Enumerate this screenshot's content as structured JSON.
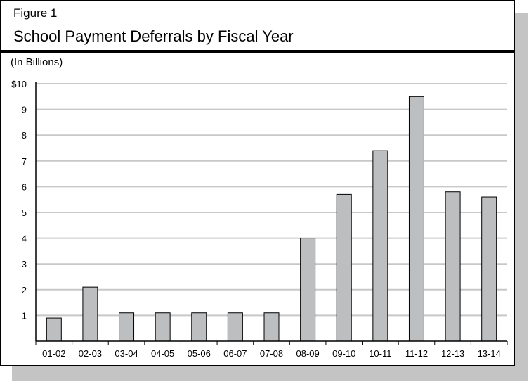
{
  "figure": {
    "label": "Figure 1",
    "title": "School Payment Deferrals by Fiscal Year",
    "unit_note": "(In Billions)"
  },
  "colors": {
    "bar_fill": "#bcbec0",
    "bar_stroke": "#000000",
    "grid": "#c8c8c8",
    "shadow": "#c4c4c4"
  },
  "chart_data": {
    "type": "bar",
    "title": "School Payment Deferrals by Fiscal Year",
    "ylabel": "(In Billions)",
    "xlabel": "",
    "categories": [
      "01-02",
      "02-03",
      "03-04",
      "04-05",
      "05-06",
      "06-07",
      "07-08",
      "08-09",
      "09-10",
      "10-11",
      "11-12",
      "12-13",
      "13-14"
    ],
    "values": [
      0.9,
      2.1,
      1.1,
      1.1,
      1.1,
      1.1,
      1.1,
      4.0,
      5.7,
      7.4,
      9.5,
      5.8,
      5.6
    ],
    "ylim": [
      0,
      10
    ],
    "yticks": [
      1,
      2,
      3,
      4,
      5,
      6,
      7,
      8,
      9,
      10
    ],
    "ytick_labels": [
      "1",
      "2",
      "3",
      "4",
      "5",
      "6",
      "7",
      "8",
      "9",
      "$10"
    ],
    "grid": true,
    "legend": "none"
  }
}
